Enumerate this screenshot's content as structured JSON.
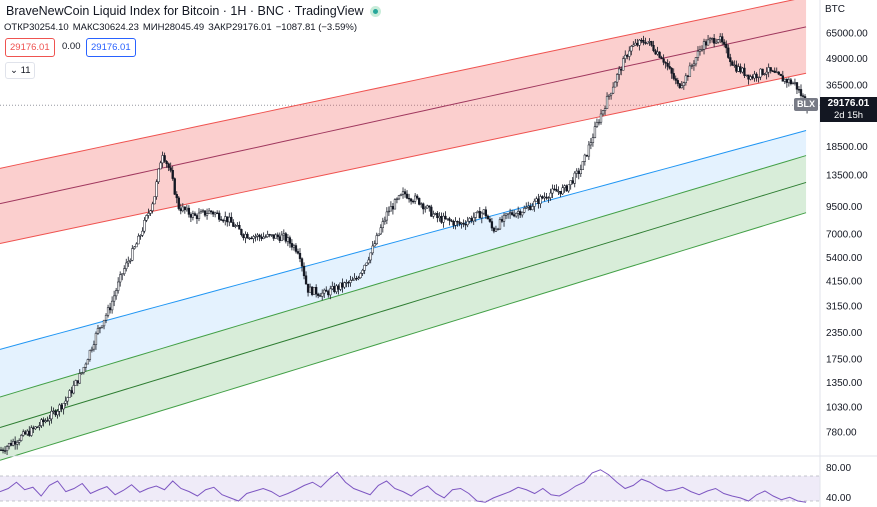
{
  "header": {
    "title": "BraveNewCoin Liquid Index for Bitcoin · 1H · BNC · TradingView",
    "ohlc": {
      "open_label": "ОТКР",
      "open": "30254.10",
      "high_label": "МАКС",
      "high": "30624.23",
      "low_label": "МИН",
      "low": "28045.49",
      "close_label": "ЗАКР",
      "close": "29176.01",
      "change": "−1087.81 (−3.59%)"
    },
    "sell_price": "29176.01",
    "spread": "0.00",
    "buy_price": "29176.01",
    "indicators_toggle": "11"
  },
  "axis": {
    "currency": "BTC",
    "price_labels": [
      "65000.00",
      "49000.00",
      "36500.00",
      "18500.00",
      "13500.00",
      "9500.00",
      "7000.00",
      "5400.00",
      "4150.00",
      "3150.00",
      "2350.00",
      "1750.00",
      "1350.00",
      "1030.00",
      "780.00"
    ],
    "rsi_labels": [
      "80.00",
      "40.00"
    ]
  },
  "last_price": {
    "symbol": "BLX",
    "value": "29176.01",
    "countdown": "2d 15h"
  },
  "colors": {
    "up": "#131722",
    "red_band": "rgba(239,83,80,0.28)",
    "red_line": "#ef5350",
    "red_mid": "#a0385e",
    "blue_band": "rgba(33,150,243,0.12)",
    "blue_line": "#2196f3",
    "green_band": "rgba(76,175,80,0.22)",
    "green_line": "#43a047",
    "green_mid": "#2e7d32",
    "rsi_line": "#7e57c2",
    "rsi_band": "rgba(126,87,194,0.12)"
  },
  "chart_data": {
    "type": "candlestick",
    "scale": "log",
    "ylim": [
      700,
      80000
    ],
    "last_close": 29176.01,
    "bands": {
      "red_upper": [
        [
          0,
          14500
        ],
        [
          1,
          100000
        ]
      ],
      "red_mid": [
        [
          0,
          9800
        ],
        [
          1,
          72000
        ]
      ],
      "red_lower": [
        [
          0,
          6300
        ],
        [
          1,
          43000
        ]
      ],
      "blue_upper": [
        [
          0,
          1950
        ],
        [
          1,
          23000
        ]
      ],
      "green_upper": [
        [
          0,
          1150
        ],
        [
          1,
          17500
        ]
      ],
      "green_mid": [
        [
          0,
          820
        ],
        [
          1,
          13000
        ]
      ],
      "green_lower": [
        [
          0,
          570
        ],
        [
          1,
          9300
        ]
      ]
    },
    "price_path": [
      [
        0,
        640
      ],
      [
        0.02,
        720
      ],
      [
        0.04,
        800
      ],
      [
        0.06,
        920
      ],
      [
        0.08,
        1100
      ],
      [
        0.1,
        1500
      ],
      [
        0.12,
        2400
      ],
      [
        0.135,
        3100
      ],
      [
        0.15,
        4500
      ],
      [
        0.17,
        6500
      ],
      [
        0.19,
        10500
      ],
      [
        0.2,
        17500
      ],
      [
        0.21,
        14000
      ],
      [
        0.22,
        9500
      ],
      [
        0.24,
        8500
      ],
      [
        0.26,
        9000
      ],
      [
        0.28,
        8300
      ],
      [
        0.3,
        7000
      ],
      [
        0.32,
        6800
      ],
      [
        0.35,
        6800
      ],
      [
        0.37,
        5800
      ],
      [
        0.38,
        3800
      ],
      [
        0.4,
        3600
      ],
      [
        0.42,
        3900
      ],
      [
        0.44,
        4200
      ],
      [
        0.46,
        5800
      ],
      [
        0.48,
        9000
      ],
      [
        0.5,
        11000
      ],
      [
        0.52,
        10000
      ],
      [
        0.54,
        8400
      ],
      [
        0.57,
        7800
      ],
      [
        0.6,
        9000
      ],
      [
        0.61,
        7300
      ],
      [
        0.63,
        8700
      ],
      [
        0.65,
        9200
      ],
      [
        0.68,
        11000
      ],
      [
        0.7,
        11500
      ],
      [
        0.72,
        14500
      ],
      [
        0.74,
        24000
      ],
      [
        0.76,
        37000
      ],
      [
        0.78,
        55000
      ],
      [
        0.8,
        60000
      ],
      [
        0.82,
        50000
      ],
      [
        0.84,
        36000
      ],
      [
        0.85,
        40000
      ],
      [
        0.87,
        57000
      ],
      [
        0.89,
        62000
      ],
      [
        0.91,
        45000
      ],
      [
        0.93,
        40000
      ],
      [
        0.95,
        43000
      ],
      [
        0.97,
        39000
      ],
      [
        0.985,
        37000
      ],
      [
        1,
        29176
      ]
    ],
    "rsi": [
      55,
      60,
      70,
      58,
      62,
      48,
      65,
      72,
      55,
      60,
      68,
      52,
      58,
      63,
      50,
      57,
      66,
      54,
      60,
      64,
      58,
      72,
      60,
      55,
      48,
      58,
      62,
      50,
      45,
      40,
      52,
      56,
      60,
      55,
      47,
      52,
      58,
      65,
      70,
      62,
      75,
      86,
      70,
      60,
      55,
      50,
      65,
      72,
      60,
      55,
      48,
      58,
      64,
      52,
      45,
      58,
      60,
      52,
      40,
      38,
      45,
      50,
      55,
      62,
      58,
      52,
      60,
      50,
      48,
      55,
      64,
      70,
      85,
      90,
      82,
      70,
      60,
      65,
      75,
      70,
      62,
      56,
      58,
      62,
      55,
      50,
      56,
      60,
      52,
      48,
      45,
      40,
      50,
      56,
      48,
      42,
      46,
      40,
      38
    ]
  }
}
